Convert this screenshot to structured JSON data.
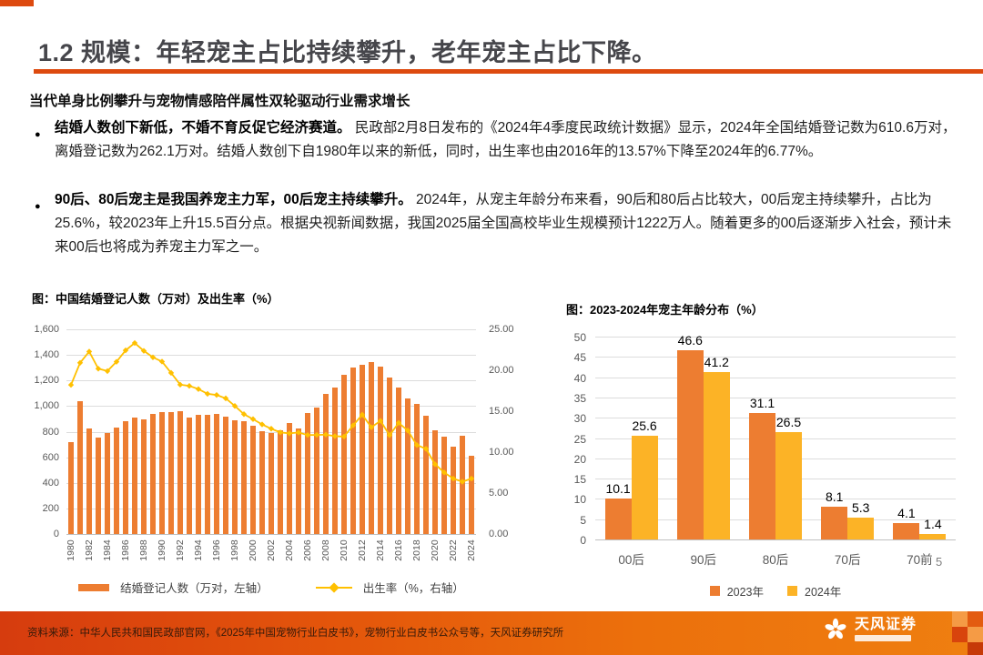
{
  "page": {
    "title": "1.2 规模：年轻宠主占比持续攀升，老年宠主占比下降。",
    "page_number": "5"
  },
  "colors": {
    "accent_rule": "#DD4A0F",
    "title_text": "#46464b",
    "bar_2023_orange": "#ED7D31",
    "bar_2024_amber": "#FCB326",
    "line_gold": "#FFC000",
    "footer_gradient_left": "#d63c0e",
    "footer_gradient_right": "#ef7f10",
    "axis_text": "#595959",
    "gridline": "#dcdcdc"
  },
  "body": {
    "heading": "当代单身比例攀升与宠物情感陪伴属性双轮驱动行业需求增长",
    "bullet_glyph": "●",
    "bullets": [
      {
        "bold": "结婚人数创下新低，不婚不育反促它经济赛道。",
        "text": "民政部2月8日发布的《2024年4季度民政统计数据》显示，2024年全国结婚登记数为610.6万对，离婚登记数为262.1万对。结婚人数创下自1980年以来的新低，同时，出生率也由2016年的13.57%下降至2024年的6.77%。"
      },
      {
        "bold": "90后、80后宠主是我国养宠主力军，00后宠主持续攀升。",
        "text": "2024年，从宠主年龄分布来看，90后和80后占比较大，00后宠主持续攀升，占比为25.6%，较2023年上升15.5百分点。根据央视新闻数据，我国2025届全国高校毕业生规模预计1222万人。随着更多的00后逐渐步入社会，预计未来00后也将成为养宠主力军之一。"
      }
    ]
  },
  "chart_data": [
    {
      "id": "marriage-birthrate",
      "type": "combo-bar-line",
      "title": "图：中国结婚登记人数（万对）及出生率（%）",
      "years": [
        1980,
        1981,
        1982,
        1983,
        1984,
        1985,
        1986,
        1987,
        1988,
        1989,
        1990,
        1991,
        1992,
        1993,
        1994,
        1995,
        1996,
        1997,
        1998,
        1999,
        2000,
        2001,
        2002,
        2003,
        2004,
        2005,
        2006,
        2007,
        2008,
        2009,
        2010,
        2011,
        2012,
        2013,
        2014,
        2015,
        2016,
        2017,
        2018,
        2019,
        2020,
        2021,
        2022,
        2023,
        2024
      ],
      "series": [
        {
          "name": "结婚登记人数（万对，左轴）",
          "type": "bar",
          "axis": "left",
          "color": "#ED7D31",
          "values": [
            716.6,
            1039.0,
            827.0,
            757.4,
            790.6,
            831.3,
            884.3,
            912.6,
            898.2,
            937.2,
            951.1,
            950.9,
            961.0,
            912.0,
            929.0,
            934.1,
            938.9,
            913.9,
            891.4,
            885.0,
            848.5,
            805.0,
            786.0,
            811.4,
            867.2,
            823.1,
            945.0,
            991.4,
            1098.3,
            1145.8,
            1241.0,
            1302.4,
            1323.6,
            1346.9,
            1306.7,
            1224.7,
            1142.8,
            1063.1,
            1013.9,
            927.3,
            814.3,
            764.3,
            683.5,
            768.2,
            610.6
          ]
        },
        {
          "name": "出生率（%，右轴）",
          "type": "line",
          "axis": "right",
          "color": "#FFC000",
          "values": [
            18.21,
            20.91,
            22.28,
            20.19,
            19.9,
            21.04,
            22.43,
            23.33,
            22.37,
            21.58,
            21.06,
            19.68,
            18.24,
            18.09,
            17.7,
            17.12,
            16.98,
            16.57,
            15.64,
            14.64,
            14.03,
            13.38,
            12.86,
            12.41,
            12.29,
            12.4,
            12.09,
            12.1,
            12.14,
            11.95,
            11.9,
            13.27,
            14.57,
            13.03,
            13.83,
            12.07,
            13.57,
            12.64,
            10.86,
            10.41,
            8.52,
            7.52,
            6.77,
            6.39,
            6.77
          ]
        }
      ],
      "left_axis": {
        "min": 0,
        "max": 1600,
        "step": 200,
        "labels": [
          "1,600",
          "1,400",
          "1,200",
          "1,000",
          "800",
          "600",
          "400",
          "200",
          "0"
        ]
      },
      "right_axis": {
        "min": 0,
        "max": 25,
        "step": 5,
        "labels": [
          "25.00",
          "20.00",
          "15.00",
          "10.00",
          "5.00",
          "0.00"
        ]
      },
      "x_tick_every": 2,
      "grid": true,
      "legend_position": "bottom"
    },
    {
      "id": "pet-owner-age",
      "type": "bar",
      "title": "图：2023-2024年宠主年龄分布（%）",
      "categories": [
        "00后",
        "90后",
        "80后",
        "70后",
        "70前"
      ],
      "series": [
        {
          "name": "2023年",
          "color": "#ED7D31",
          "values": [
            10.1,
            46.6,
            31.1,
            8.1,
            4.1
          ]
        },
        {
          "name": "2024年",
          "color": "#FCB326",
          "values": [
            25.6,
            41.2,
            26.5,
            5.3,
            1.4
          ]
        }
      ],
      "y_axis": {
        "min": 0,
        "max": 50,
        "step": 5,
        "labels": [
          "50",
          "45",
          "40",
          "35",
          "30",
          "25",
          "20",
          "15",
          "10",
          "5",
          "0"
        ]
      },
      "data_labels": true,
      "grid": true,
      "legend_position": "bottom"
    }
  ],
  "footer": {
    "source": "资料来源：中华人民共和国民政部官网，《2025年中国宠物行业白皮书》，宠物行业白皮书公众号等，天风证券研究所",
    "logo_text": "天风证券"
  }
}
